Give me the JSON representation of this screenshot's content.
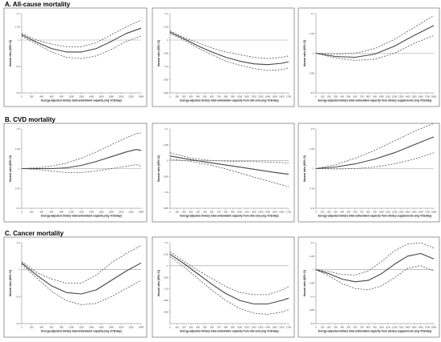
{
  "sections": [
    {
      "title": "A. All-cause mortality"
    },
    {
      "title": "B. CVD mortality"
    },
    {
      "title": "C. Cancer mortality"
    }
  ],
  "ylabel": "Hazard ratio (95% CI)",
  "colors": {
    "line": "#444444",
    "ci": "#555555",
    "ref": "#9a9a9a",
    "frame": "#555555"
  },
  "chart_data": [
    {
      "type": "line",
      "section": "A. All-cause mortality",
      "xlabel": "Energy-adjusted dietary total antioxidant capacity (mg VCE/day)",
      "ylabel": "Hazard ratio (95% CI)",
      "xlim": [
        0,
        2400
      ],
      "ylim": [
        0.8,
        1.1
      ],
      "xticks": [
        0,
        200,
        400,
        600,
        800,
        1000,
        1200,
        1400,
        1600,
        1800,
        2000,
        2200,
        2400
      ],
      "yticks": [
        0.8,
        0.9,
        1,
        1.05,
        1.1
      ],
      "ytick_labels": [
        "0.8",
        "0.9",
        "1",
        "1.05",
        "1.1"
      ],
      "reference_line": 1,
      "series": [
        {
          "role": "estimate",
          "x": [
            0,
            300,
            600,
            900,
            1200,
            1500,
            1800,
            2100,
            2400
          ],
          "y": [
            1.02,
            0.992,
            0.968,
            0.955,
            0.955,
            0.968,
            0.995,
            1.025,
            1.045
          ]
        },
        {
          "role": "upper_ci",
          "x": [
            0,
            300,
            600,
            900,
            1200,
            1500,
            1800,
            2100,
            2400
          ],
          "y": [
            1.025,
            1.0,
            0.985,
            0.975,
            0.975,
            0.99,
            1.02,
            1.05,
            1.075
          ]
        },
        {
          "role": "lower_ci",
          "x": [
            0,
            300,
            600,
            900,
            1200,
            1500,
            1800,
            2100,
            2400
          ],
          "y": [
            1.015,
            0.985,
            0.955,
            0.935,
            0.93,
            0.94,
            0.965,
            0.995,
            1.015
          ]
        }
      ]
    },
    {
      "type": "line",
      "section": "A. All-cause mortality",
      "xlabel": "Energy-adjusted dietary total antioxidant capacity from diet only (mg VCE/day)",
      "ylabel": "Hazard ratio (95% CI)",
      "xlim": [
        0,
        1700
      ],
      "ylim": [
        0.8,
        1.1
      ],
      "xticks": [
        0,
        100,
        200,
        300,
        400,
        500,
        600,
        700,
        800,
        900,
        1000,
        1100,
        1200,
        1300,
        1400,
        1500,
        1600,
        1700
      ],
      "yticks": [
        0.8,
        0.85,
        0.9,
        0.95,
        1,
        1.05,
        1.1
      ],
      "ytick_labels": [
        "0.80",
        "0.85",
        "0.9",
        "0.95",
        "1",
        "1.05",
        "1.1"
      ],
      "reference_line": 1,
      "series": [
        {
          "role": "estimate",
          "x": [
            0,
            200,
            400,
            600,
            800,
            1000,
            1200,
            1400,
            1600,
            1700
          ],
          "y": [
            1.03,
            1.005,
            0.978,
            0.955,
            0.935,
            0.92,
            0.91,
            0.907,
            0.912,
            0.918
          ]
        },
        {
          "role": "upper_ci",
          "x": [
            0,
            200,
            400,
            600,
            800,
            1000,
            1200,
            1400,
            1600,
            1700
          ],
          "y": [
            1.035,
            1.01,
            0.99,
            0.97,
            0.955,
            0.945,
            0.935,
            0.93,
            0.935,
            0.94
          ]
        },
        {
          "role": "lower_ci",
          "x": [
            0,
            200,
            400,
            600,
            800,
            1000,
            1200,
            1400,
            1600,
            1700
          ],
          "y": [
            1.025,
            1.0,
            0.97,
            0.945,
            0.92,
            0.905,
            0.892,
            0.885,
            0.888,
            0.895
          ]
        }
      ]
    },
    {
      "type": "line",
      "section": "A. All-cause mortality",
      "xlabel": "Energy-adjusted dietary total antioxidant capacity from dietary supplements (mg VCE/day)",
      "ylabel": "Hazard ratio (95% CI)",
      "xlim": [
        0,
        1800
      ],
      "ylim": [
        0.9,
        1.1
      ],
      "xticks": [
        0,
        100,
        200,
        300,
        400,
        500,
        600,
        700,
        800,
        900,
        1000,
        1100,
        1200,
        1300,
        1400,
        1500,
        1600,
        1700,
        1800
      ],
      "yticks": [
        0.9,
        0.95,
        1,
        1.05,
        1.1
      ],
      "ytick_labels": [
        "0.9",
        "0.95",
        "1",
        "1.05",
        "1.1"
      ],
      "reference_line": 1,
      "series": [
        {
          "role": "estimate",
          "x": [
            0,
            300,
            600,
            900,
            1200,
            1500,
            1800
          ],
          "y": [
            1.0,
            0.992,
            0.99,
            0.998,
            1.018,
            1.045,
            1.07
          ]
        },
        {
          "role": "upper_ci",
          "x": [
            0,
            300,
            600,
            900,
            1200,
            1500,
            1800
          ],
          "y": [
            1.0,
            0.998,
            1.0,
            1.012,
            1.035,
            1.065,
            1.095
          ]
        },
        {
          "role": "lower_ci",
          "x": [
            0,
            300,
            600,
            900,
            1200,
            1500,
            1800
          ],
          "y": [
            1.0,
            0.988,
            0.982,
            0.985,
            1.0,
            1.025,
            1.045
          ]
        }
      ]
    },
    {
      "type": "line",
      "section": "B. CVD mortality",
      "xlabel": "Energy-adjusted dietary total antioxidant capacity (mg VCE/day)",
      "ylabel": "Hazard ratio (95% CI)",
      "xlim": [
        0,
        2400
      ],
      "ylim": [
        0.5,
        1.5
      ],
      "xticks": [
        0,
        200,
        400,
        600,
        800,
        1000,
        1200,
        1400,
        1600,
        1800,
        2000,
        2200,
        2400
      ],
      "yticks": [
        0.5,
        0.75,
        1,
        1.25,
        1.5
      ],
      "ytick_labels": [
        "0.5",
        "0.75",
        "1",
        "1.25",
        "1.5"
      ],
      "reference_line": 1,
      "series": [
        {
          "role": "estimate",
          "x": [
            0,
            300,
            600,
            900,
            1200,
            1500,
            1800,
            2100,
            2300,
            2400
          ],
          "y": [
            1.0,
            1.0,
            1.0,
            1.01,
            1.04,
            1.09,
            1.15,
            1.21,
            1.24,
            1.23
          ]
        },
        {
          "role": "upper_ci",
          "x": [
            0,
            300,
            600,
            900,
            1200,
            1500,
            1800,
            2100,
            2300,
            2400
          ],
          "y": [
            1.0,
            1.01,
            1.03,
            1.07,
            1.13,
            1.21,
            1.3,
            1.39,
            1.44,
            1.45
          ]
        },
        {
          "role": "lower_ci",
          "x": [
            0,
            300,
            600,
            900,
            1200,
            1500,
            1800,
            2100,
            2300,
            2400
          ],
          "y": [
            1.0,
            0.99,
            0.97,
            0.95,
            0.95,
            0.97,
            1.0,
            1.03,
            1.05,
            1.03
          ]
        }
      ]
    },
    {
      "type": "line",
      "section": "B. CVD mortality",
      "xlabel": "Energy-adjusted dietary total antioxidant capacity from diet only (mg VCE/day)",
      "ylabel": "Hazard ratio (95% CI)",
      "xlim": [
        0,
        1700
      ],
      "ylim": [
        0.85,
        1.1
      ],
      "xticks": [
        0,
        100,
        200,
        300,
        400,
        500,
        600,
        700,
        800,
        900,
        1000,
        1100,
        1200,
        1300,
        1400,
        1500,
        1600,
        1700
      ],
      "yticks": [
        0.85,
        0.9,
        0.95,
        1,
        1.05,
        1.1
      ],
      "ytick_labels": [
        "0.85",
        "0.9",
        "0.95",
        "1",
        "1.05",
        "1.1"
      ],
      "reference_line": 1,
      "series": [
        {
          "role": "estimate",
          "x": [
            0,
            300,
            600,
            900,
            1200,
            1500,
            1700
          ],
          "y": [
            1.015,
            1.003,
            0.993,
            0.983,
            0.973,
            0.963,
            0.957
          ]
        },
        {
          "role": "upper_ci",
          "x": [
            0,
            300,
            600,
            900,
            1200,
            1500,
            1700
          ],
          "y": [
            1.025,
            1.008,
            1.0,
            0.998,
            0.997,
            0.995,
            0.993
          ]
        },
        {
          "role": "lower_ci",
          "x": [
            0,
            300,
            600,
            900,
            1200,
            1500,
            1700
          ],
          "y": [
            1.005,
            0.998,
            0.985,
            0.968,
            0.948,
            0.93,
            0.918
          ]
        }
      ]
    },
    {
      "type": "line",
      "section": "B. CVD mortality",
      "xlabel": "Energy-adjusted dietary total antioxidant capacity from dietary supplements (mg VCE/day)",
      "ylabel": "Hazard ratio (95% CI)",
      "xlim": [
        0,
        1800
      ],
      "ylim": [
        0.5,
        1.5
      ],
      "xticks": [
        0,
        100,
        200,
        300,
        400,
        500,
        600,
        700,
        800,
        900,
        1000,
        1100,
        1200,
        1300,
        1400,
        1500,
        1600,
        1700,
        1800
      ],
      "yticks": [
        0.5,
        0.75,
        1,
        1.25,
        1.5
      ],
      "ytick_labels": [
        "0.5",
        "0.75",
        "1",
        "1.25",
        "1.5"
      ],
      "reference_line": 1,
      "series": [
        {
          "role": "estimate",
          "x": [
            0,
            300,
            600,
            900,
            1200,
            1500,
            1800
          ],
          "y": [
            1.0,
            1.02,
            1.06,
            1.12,
            1.2,
            1.3,
            1.4
          ]
        },
        {
          "role": "upper_ci",
          "x": [
            0,
            300,
            600,
            900,
            1200,
            1500,
            1800
          ],
          "y": [
            1.0,
            1.05,
            1.13,
            1.23,
            1.35,
            1.47,
            1.57
          ]
        },
        {
          "role": "lower_ci",
          "x": [
            0,
            300,
            600,
            900,
            1200,
            1500,
            1800
          ],
          "y": [
            1.0,
            0.995,
            1.0,
            1.02,
            1.06,
            1.12,
            1.2
          ]
        }
      ]
    },
    {
      "type": "line",
      "section": "C. Cancer mortality",
      "xlabel": "Energy-adjusted dietary total antioxidant capacity (mg VCE/day)",
      "ylabel": "Hazard ratio (95% CI)",
      "xlim": [
        0,
        2400
      ],
      "ylim": [
        0.6,
        1.2
      ],
      "xticks": [
        0,
        200,
        400,
        600,
        800,
        1000,
        1200,
        1400,
        1600,
        1800,
        2000,
        2200,
        2400
      ],
      "yticks": [
        0.6,
        0.8,
        1,
        1.2
      ],
      "ytick_labels": [
        "0.6",
        "0.8",
        "1",
        "1.2"
      ],
      "reference_line": 1,
      "series": [
        {
          "role": "estimate",
          "x": [
            0,
            300,
            600,
            900,
            1200,
            1500,
            1800,
            2100,
            2400
          ],
          "y": [
            1.05,
            0.96,
            0.88,
            0.83,
            0.82,
            0.85,
            0.92,
            0.99,
            1.05
          ]
        },
        {
          "role": "upper_ci",
          "x": [
            0,
            300,
            600,
            900,
            1200,
            1500,
            1800,
            2100,
            2400
          ],
          "y": [
            1.06,
            0.98,
            0.93,
            0.9,
            0.9,
            0.96,
            1.05,
            1.12,
            1.18
          ]
        },
        {
          "role": "lower_ci",
          "x": [
            0,
            300,
            600,
            900,
            1200,
            1500,
            1800,
            2100,
            2400
          ],
          "y": [
            1.04,
            0.94,
            0.84,
            0.77,
            0.74,
            0.75,
            0.8,
            0.86,
            0.92
          ]
        }
      ]
    },
    {
      "type": "line",
      "section": "C. Cancer mortality",
      "xlabel": "Energy-adjusted dietary total antioxidant capacity from diet only (mg VCE/day)",
      "ylabel": "Hazard ratio (95% CI)",
      "xlim": [
        0,
        1700
      ],
      "ylim": [
        0.75,
        1.1
      ],
      "xticks": [
        0,
        100,
        200,
        300,
        400,
        500,
        600,
        700,
        800,
        900,
        1000,
        1100,
        1200,
        1300,
        1400,
        1500,
        1600,
        1700
      ],
      "yticks": [
        0.8,
        0.85,
        0.9,
        0.95,
        1,
        1.05,
        1.1
      ],
      "ytick_labels": [
        "0.80",
        "0.85",
        "0.9",
        "0.95",
        "1",
        "1.05",
        "1.1"
      ],
      "reference_line": 1,
      "series": [
        {
          "role": "estimate",
          "x": [
            0,
            200,
            400,
            600,
            800,
            1000,
            1200,
            1400,
            1600,
            1700
          ],
          "y": [
            1.05,
            1.01,
            0.965,
            0.92,
            0.88,
            0.85,
            0.835,
            0.835,
            0.85,
            0.86
          ]
        },
        {
          "role": "upper_ci",
          "x": [
            0,
            200,
            400,
            600,
            800,
            1000,
            1200,
            1400,
            1600,
            1700
          ],
          "y": [
            1.06,
            1.02,
            0.98,
            0.945,
            0.91,
            0.885,
            0.875,
            0.875,
            0.895,
            0.91
          ]
        },
        {
          "role": "lower_ci",
          "x": [
            0,
            200,
            400,
            600,
            800,
            1000,
            1200,
            1400,
            1600,
            1700
          ],
          "y": [
            1.04,
            0.995,
            0.945,
            0.895,
            0.85,
            0.815,
            0.795,
            0.79,
            0.8,
            0.81
          ]
        }
      ]
    },
    {
      "type": "line",
      "section": "C. Cancer mortality",
      "xlabel": "Energy-adjusted dietary total antioxidant capacity from dietary supplements (mg VCE/day)",
      "ylabel": "Hazard ratio (95% CI)",
      "xlim": [
        0,
        1800
      ],
      "ylim": [
        0.8,
        1.1
      ],
      "xticks": [
        0,
        100,
        200,
        300,
        400,
        500,
        600,
        700,
        800,
        900,
        1000,
        1100,
        1200,
        1300,
        1400,
        1500,
        1600,
        1700,
        1800
      ],
      "yticks": [
        0.8,
        0.85,
        0.9,
        0.95,
        1,
        1.05,
        1.1
      ],
      "ytick_labels": [
        "0.8",
        "0.85",
        "0.9",
        "0.95",
        "1",
        "1.05",
        "1.1"
      ],
      "reference_line": 1,
      "series": [
        {
          "role": "estimate",
          "x": [
            0,
            200,
            400,
            600,
            800,
            1000,
            1200,
            1400,
            1600,
            1800
          ],
          "y": [
            1.0,
            0.985,
            0.965,
            0.955,
            0.96,
            0.985,
            1.02,
            1.05,
            1.06,
            1.04
          ]
        },
        {
          "role": "upper_ci",
          "x": [
            0,
            200,
            400,
            600,
            800,
            1000,
            1200,
            1400,
            1600,
            1800
          ],
          "y": [
            1.0,
            0.993,
            0.982,
            0.98,
            0.995,
            1.03,
            1.07,
            1.095,
            1.1,
            1.08
          ]
        },
        {
          "role": "lower_ci",
          "x": [
            0,
            200,
            400,
            600,
            800,
            1000,
            1200,
            1400,
            1600,
            1800
          ],
          "y": [
            1.0,
            0.977,
            0.948,
            0.93,
            0.925,
            0.94,
            0.97,
            1.005,
            1.015,
            0.995
          ]
        }
      ]
    }
  ]
}
